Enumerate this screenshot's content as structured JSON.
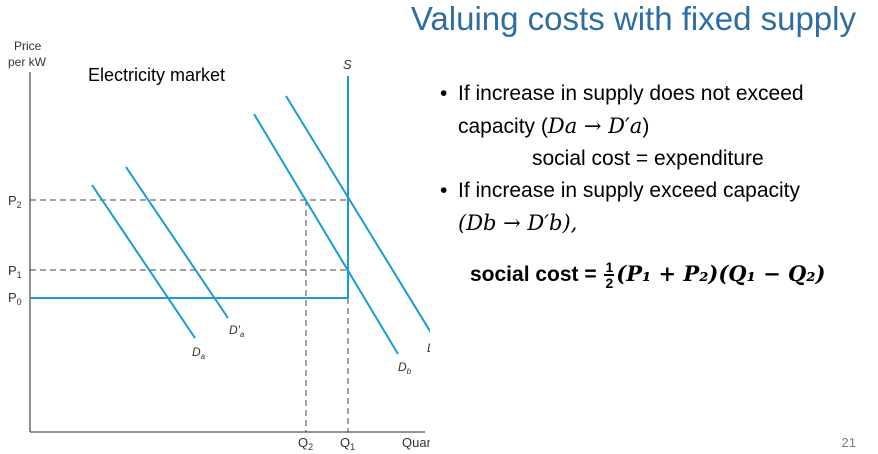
{
  "title": "Valuing costs with fixed supply",
  "page_number": "21",
  "diagram": {
    "axis_y_label_line1": "Price",
    "axis_y_label_line2": "per kW",
    "axis_x_label": "Quantity in kWs",
    "market_label": "Electricity market",
    "supply_label": "S",
    "price_ticks": [
      "P",
      "P",
      "P"
    ],
    "price_tick_subscripts": [
      "2",
      "1",
      "0"
    ],
    "quantity_ticks": [
      "Q",
      "Q"
    ],
    "quantity_tick_subscripts": [
      "2",
      "1"
    ],
    "curve_labels": {
      "da": "D",
      "da_sub": "a",
      "da_prime": "D′",
      "da_prime_sub": "a",
      "db": "D",
      "db_sub": "b",
      "db_prime": "D′",
      "db_prime_sub": "b"
    },
    "colors": {
      "curve": "#1a9ad6",
      "axis": "#555555",
      "dashed": "#444444"
    }
  },
  "bullets": {
    "item1_text": "If increase in supply does not exceed",
    "item1_line2_prefix": "capacity (",
    "item1_math": "Da → D′a",
    "item1_line2_suffix": ")",
    "item1_result": "social cost = expenditure",
    "item2_text": "If increase in supply exceed capacity",
    "item2_math": "(Db → D′b),",
    "bullet_symbol": "•"
  },
  "formula": {
    "prefix": "social cost = ",
    "frac_num": "1",
    "frac_den": "2",
    "expression": "(P₁ + P₂)(Q₁ − Q₂)"
  }
}
